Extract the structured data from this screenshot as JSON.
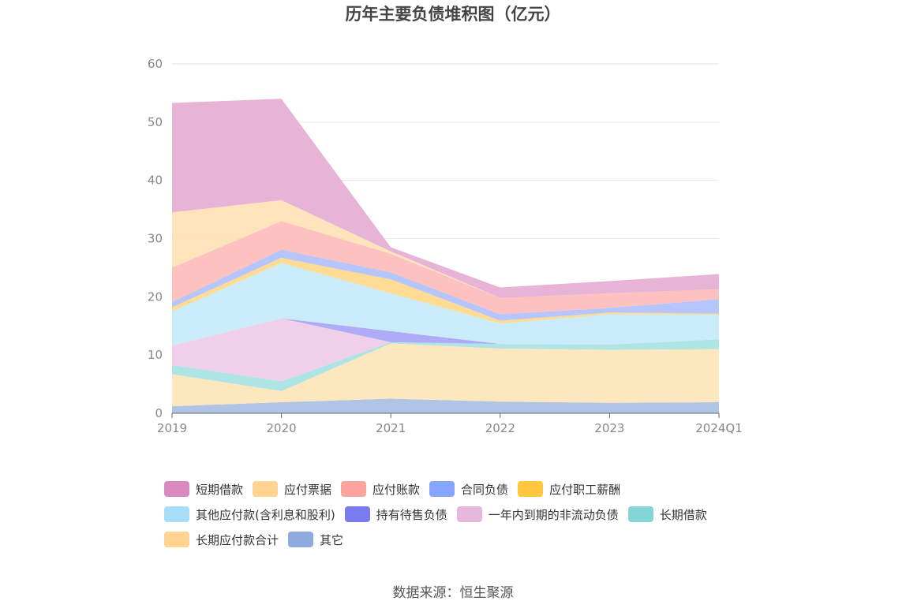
{
  "source_text": "数据来源：恒生聚源",
  "chart_data": {
    "type": "area",
    "stacked": true,
    "title": "历年主要负债堆积图（亿元）",
    "xlabel": "",
    "ylabel": "",
    "ylim": [
      0,
      60
    ],
    "yticks": [
      "0",
      "10",
      "20",
      "30",
      "40",
      "50",
      "60"
    ],
    "categories": [
      "2019",
      "2020",
      "2021",
      "2022",
      "2023",
      "2024Q1"
    ],
    "grid": true,
    "legend_position": "bottom",
    "series": [
      {
        "name": "其它",
        "color": "#8FAADC",
        "fill": "#A9BFE3",
        "values": [
          1.2,
          1.9,
          2.5,
          2.0,
          1.8,
          1.9
        ]
      },
      {
        "name": "长期应付款合计",
        "color": "#FFD591",
        "fill": "#FDE5BA",
        "values": [
          5.5,
          1.9,
          9.5,
          9.1,
          9.1,
          9.1
        ]
      },
      {
        "name": "长期借款",
        "color": "#84D6D6",
        "fill": "#A8E2E2",
        "values": [
          1.6,
          1.7,
          0.2,
          0.8,
          0.9,
          1.7
        ]
      },
      {
        "name": "一年内到期的非流动负债",
        "color": "#E8B8DC",
        "fill": "#EFCCE6",
        "values": [
          3.3,
          10.8,
          0.0,
          0.0,
          0.0,
          0.0
        ]
      },
      {
        "name": "持有待售负债",
        "color": "#7B7BF0",
        "fill": "#A7A5F5",
        "values": [
          0.0,
          0.0,
          1.9,
          0.0,
          0.0,
          0.0
        ]
      },
      {
        "name": "其他应付款(含利息和股利)",
        "color": "#A8DDF7",
        "fill": "#C5E9FA",
        "values": [
          5.9,
          9.5,
          6.5,
          3.5,
          5.2,
          4.2
        ]
      },
      {
        "name": "应付职工薪酬",
        "color": "#FFC53D",
        "fill": "#FFD88A",
        "values": [
          0.7,
          0.9,
          2.4,
          0.5,
          0.3,
          0.2
        ]
      },
      {
        "name": "合同负债",
        "color": "#85A5FF",
        "fill": "#B0C1FC",
        "values": [
          0.9,
          1.4,
          1.2,
          1.1,
          0.8,
          2.5
        ]
      },
      {
        "name": "应付账款",
        "color": "#FFA39E",
        "fill": "#FDBDBB",
        "values": [
          5.9,
          4.9,
          3.2,
          2.8,
          2.5,
          1.7
        ]
      },
      {
        "name": "应付票据",
        "color": "#FFD591",
        "fill": "#FDE2B6",
        "values": [
          9.5,
          3.6,
          0.4,
          0.0,
          0.0,
          0.0
        ]
      },
      {
        "name": "短期借款",
        "color": "#DB8AC1",
        "fill": "#E5ACD3",
        "values": [
          18.8,
          17.4,
          0.7,
          1.8,
          2.1,
          2.6
        ]
      }
    ],
    "legend_order": [
      "短期借款",
      "应付票据",
      "应付账款",
      "合同负债",
      "应付职工薪酬",
      "其他应付款(含利息和股利)",
      "持有待售负债",
      "一年内到期的非流动负债",
      "长期借款",
      "长期应付款合计",
      "其它"
    ]
  }
}
